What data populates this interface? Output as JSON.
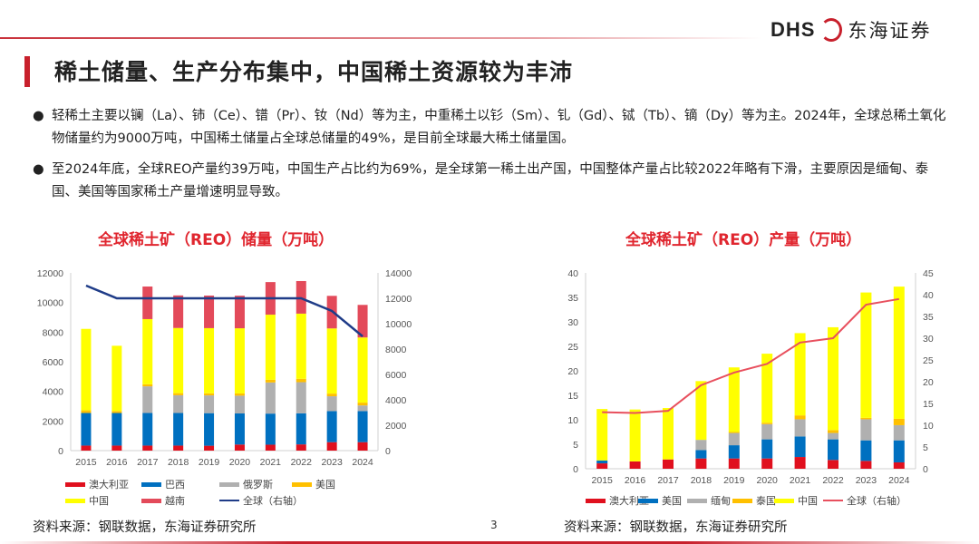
{
  "header": {
    "logo_en": "DHS",
    "logo_cn": "东海证券",
    "title": "稀土储量、生产分布集中，中国稀土资源较为丰沛"
  },
  "bullets": [
    {
      "icon": "bullet-dot",
      "symbol": "●",
      "text": "轻稀土主要以镧（La）、铈（Ce）、镨（Pr）、钕（Nd）等为主，中重稀土以钐（Sm）、钆（Gd）、铽（Tb）、镝（Dy）等为主。2024年，全球总稀土氧化物储量约为9000万吨，中国稀土储量占全球总储量的49%，是目前全球最大稀土储量国。"
    },
    {
      "icon": "bullet-dot",
      "symbol": "●",
      "text": "至2024年底，全球REO产量约39万吨，中国生产占比约为69%，是全球第一稀土出产国，中国整体产量占比较2022年略有下滑，主要原因是缅甸、泰国、美国等国家稀土产量增速明显导致。"
    }
  ],
  "chart_data": [
    {
      "type": "bar",
      "stacked": true,
      "title": "全球稀土矿（REO）储量（万吨）",
      "categories": [
        "2015",
        "2016",
        "2017",
        "2018",
        "2019",
        "2020",
        "2021",
        "2022",
        "2023",
        "2024"
      ],
      "ylim": [
        0,
        12000
      ],
      "yticks": [
        "0",
        "2000",
        "4000",
        "6000",
        "8000",
        "10000",
        "12000"
      ],
      "y2lim": [
        0,
        14000
      ],
      "y2ticks": [
        "0",
        "2000",
        "4000",
        "6000",
        "8000",
        "10000",
        "12000",
        "14000"
      ],
      "series": [
        {
          "name": "澳大利亚",
          "color": "#e0101e",
          "values": [
            340,
            340,
            340,
            340,
            330,
            410,
            400,
            420,
            570,
            570
          ]
        },
        {
          "name": "巴西",
          "color": "#0070c0",
          "values": [
            2200,
            2200,
            2200,
            2200,
            2200,
            2100,
            2100,
            2100,
            2100,
            2100
          ]
        },
        {
          "name": "俄罗斯",
          "color": "#b0b0b0",
          "values": [
            0,
            0,
            1800,
            1200,
            1200,
            1200,
            2100,
            2100,
            1000,
            380
          ]
        },
        {
          "name": "美国",
          "color": "#ffc000",
          "values": [
            180,
            140,
            140,
            140,
            140,
            150,
            180,
            230,
            180,
            190
          ]
        },
        {
          "name": "中国",
          "color": "#ffff00",
          "values": [
            5500,
            4400,
            4400,
            4400,
            4400,
            4400,
            4400,
            4400,
            4400,
            4400
          ]
        },
        {
          "name": "越南",
          "color": "#e34a5a",
          "values": [
            0,
            0,
            2200,
            2200,
            2200,
            2200,
            2200,
            2200,
            2200,
            2200
          ]
        }
      ],
      "line": {
        "name": "全球（右轴）",
        "color": "#1f3c88",
        "axis": "right",
        "values": [
          13000,
          12000,
          12000,
          12000,
          12000,
          12000,
          12000,
          12000,
          11000,
          9000
        ]
      },
      "legend": "bottom"
    },
    {
      "type": "bar",
      "stacked": true,
      "title": "全球稀土矿（REO）产量（万吨）",
      "categories": [
        "2015",
        "2016",
        "2017",
        "2018",
        "2019",
        "2020",
        "2021",
        "2022",
        "2023",
        "2024"
      ],
      "ylim": [
        0,
        40
      ],
      "yticks": [
        "0",
        "5",
        "10",
        "15",
        "20",
        "25",
        "30",
        "35",
        "40"
      ],
      "y2lim": [
        0,
        45
      ],
      "y2ticks": [
        "0",
        "5",
        "10",
        "15",
        "20",
        "25",
        "30",
        "35",
        "40",
        "45"
      ],
      "series": [
        {
          "name": "澳大利亚",
          "color": "#e0101e",
          "values": [
            1.1,
            1.5,
            1.9,
            2.1,
            2.1,
            2.1,
            2.4,
            1.8,
            1.6,
            1.3
          ]
        },
        {
          "name": "美国",
          "color": "#0070c0",
          "values": [
            0.6,
            0,
            0,
            1.7,
            2.7,
            3.9,
            4.2,
            4.2,
            4.2,
            4.5
          ]
        },
        {
          "name": "缅甸",
          "color": "#b0b0b0",
          "values": [
            0,
            0,
            0,
            2.1,
            2.5,
            3.1,
            3.5,
            1.3,
            4.3,
            3.1
          ]
        },
        {
          "name": "泰国",
          "color": "#ffc000",
          "values": [
            0,
            0,
            0,
            0,
            0.2,
            0.3,
            0.8,
            0.6,
            0.3,
            1.3
          ]
        },
        {
          "name": "中国",
          "color": "#ffff00",
          "values": [
            10.5,
            10.6,
            10.5,
            12.0,
            13.2,
            14.1,
            16.8,
            21.0,
            25.6,
            27.0
          ]
        }
      ],
      "line": {
        "name": "全球（右轴）",
        "color": "#e8505e",
        "axis": "right",
        "values": [
          13.0,
          12.8,
          13.3,
          19.2,
          22.1,
          24.1,
          29.0,
          30.0,
          37.7,
          39.0
        ]
      },
      "legend": "bottom"
    }
  ],
  "sources": [
    "资料来源：钢联数据，东海证券研究所",
    "资料来源：钢联数据，东海证券研究所"
  ],
  "page_number": "3"
}
